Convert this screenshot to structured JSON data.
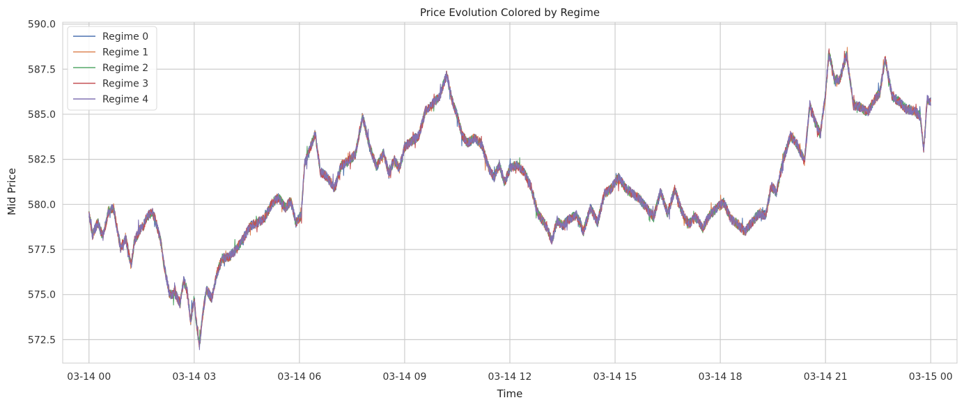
{
  "chart_data": {
    "type": "line",
    "title": "Price Evolution Colored by Regime",
    "xlabel": "Time",
    "ylabel": "Mid Price",
    "xlim": [
      -0.75,
      24.75
    ],
    "ylim": [
      571.2,
      590.1
    ],
    "x_ticks": [
      0,
      3,
      6,
      9,
      12,
      15,
      18,
      21,
      24
    ],
    "x_tick_labels": [
      "03-14 00",
      "03-14 03",
      "03-14 06",
      "03-14 09",
      "03-14 12",
      "03-14 15",
      "03-14 18",
      "03-14 21",
      "03-15 00"
    ],
    "y_ticks": [
      572.5,
      575.0,
      577.5,
      580.0,
      582.5,
      585.0,
      587.5,
      590.0
    ],
    "y_tick_labels": [
      "572.5",
      "575.0",
      "577.5",
      "580.0",
      "582.5",
      "585.0",
      "587.5",
      "590.0"
    ],
    "grid": true,
    "legend_position": "top-left",
    "series": [
      {
        "name": "Regime 0",
        "color": "#4C72B0"
      },
      {
        "name": "Regime 1",
        "color": "#DD8452"
      },
      {
        "name": "Regime 2",
        "color": "#55A868"
      },
      {
        "name": "Regime 3",
        "color": "#C44E52"
      },
      {
        "name": "Regime 4",
        "color": "#8172B3"
      }
    ],
    "price_path": {
      "x_hours": [
        0.0,
        0.1,
        0.25,
        0.4,
        0.55,
        0.7,
        0.9,
        1.05,
        1.2,
        1.3,
        1.45,
        1.55,
        1.65,
        1.8,
        1.9,
        2.05,
        2.15,
        2.3,
        2.45,
        2.6,
        2.7,
        2.8,
        2.9,
        3.0,
        3.05,
        3.15,
        3.25,
        3.35,
        3.5,
        3.65,
        3.8,
        4.0,
        4.2,
        4.4,
        4.6,
        4.8,
        5.0,
        5.2,
        5.4,
        5.6,
        5.75,
        5.9,
        6.05,
        6.15,
        6.3,
        6.45,
        6.6,
        6.8,
        7.0,
        7.2,
        7.4,
        7.6,
        7.8,
        8.0,
        8.2,
        8.4,
        8.55,
        8.7,
        8.85,
        9.0,
        9.2,
        9.4,
        9.6,
        9.8,
        10.0,
        10.2,
        10.35,
        10.5,
        10.65,
        10.8,
        11.0,
        11.2,
        11.4,
        11.55,
        11.7,
        11.85,
        12.0,
        12.2,
        12.4,
        12.6,
        12.8,
        13.0,
        13.2,
        13.35,
        13.5,
        13.7,
        13.9,
        14.1,
        14.3,
        14.5,
        14.7,
        14.9,
        15.1,
        15.3,
        15.5,
        15.7,
        15.9,
        16.1,
        16.3,
        16.5,
        16.7,
        16.9,
        17.1,
        17.3,
        17.5,
        17.7,
        17.9,
        18.1,
        18.3,
        18.5,
        18.7,
        18.9,
        19.1,
        19.3,
        19.45,
        19.6,
        19.8,
        20.0,
        20.2,
        20.4,
        20.55,
        20.7,
        20.85,
        21.0,
        21.1,
        21.25,
        21.4,
        21.6,
        21.8,
        22.0,
        22.2,
        22.4,
        22.55,
        22.7,
        22.9,
        23.1,
        23.3,
        23.5,
        23.7,
        23.8,
        23.9,
        24.0
      ],
      "y_price": [
        579.5,
        578.3,
        579.0,
        578.2,
        579.6,
        579.8,
        577.6,
        578.1,
        576.6,
        578.0,
        578.6,
        578.8,
        579.3,
        579.6,
        579.1,
        577.9,
        576.5,
        575.0,
        575.1,
        574.5,
        575.8,
        575.2,
        573.5,
        574.8,
        573.6,
        572.2,
        574.0,
        575.3,
        574.8,
        576.2,
        577.0,
        577.1,
        577.5,
        578.1,
        578.8,
        579.0,
        579.2,
        580.0,
        580.4,
        579.8,
        580.2,
        579.0,
        579.4,
        582.3,
        583.1,
        583.9,
        581.8,
        581.5,
        580.9,
        582.2,
        582.4,
        582.8,
        584.9,
        583.2,
        582.1,
        582.9,
        581.7,
        582.5,
        582.0,
        583.2,
        583.5,
        583.8,
        585.2,
        585.6,
        586.0,
        587.2,
        585.8,
        584.9,
        583.8,
        583.4,
        583.7,
        583.3,
        582.0,
        581.5,
        582.2,
        581.2,
        582.0,
        582.2,
        581.8,
        581.0,
        579.5,
        578.9,
        578.0,
        579.1,
        578.8,
        579.2,
        579.4,
        578.5,
        579.8,
        579.0,
        580.6,
        580.9,
        581.5,
        580.9,
        580.6,
        580.3,
        579.8,
        579.3,
        580.7,
        579.5,
        580.8,
        579.6,
        578.9,
        579.3,
        578.7,
        579.4,
        579.8,
        580.1,
        579.2,
        578.9,
        578.5,
        579.0,
        579.5,
        579.4,
        581.0,
        580.7,
        582.5,
        583.8,
        583.3,
        582.4,
        585.5,
        584.6,
        583.9,
        586.1,
        588.4,
        587.0,
        586.9,
        588.3,
        585.5,
        585.4,
        585.1,
        585.8,
        586.2,
        588.1,
        586.0,
        585.7,
        585.3,
        585.2,
        584.9,
        583.1,
        585.8,
        585.7
      ]
    }
  }
}
